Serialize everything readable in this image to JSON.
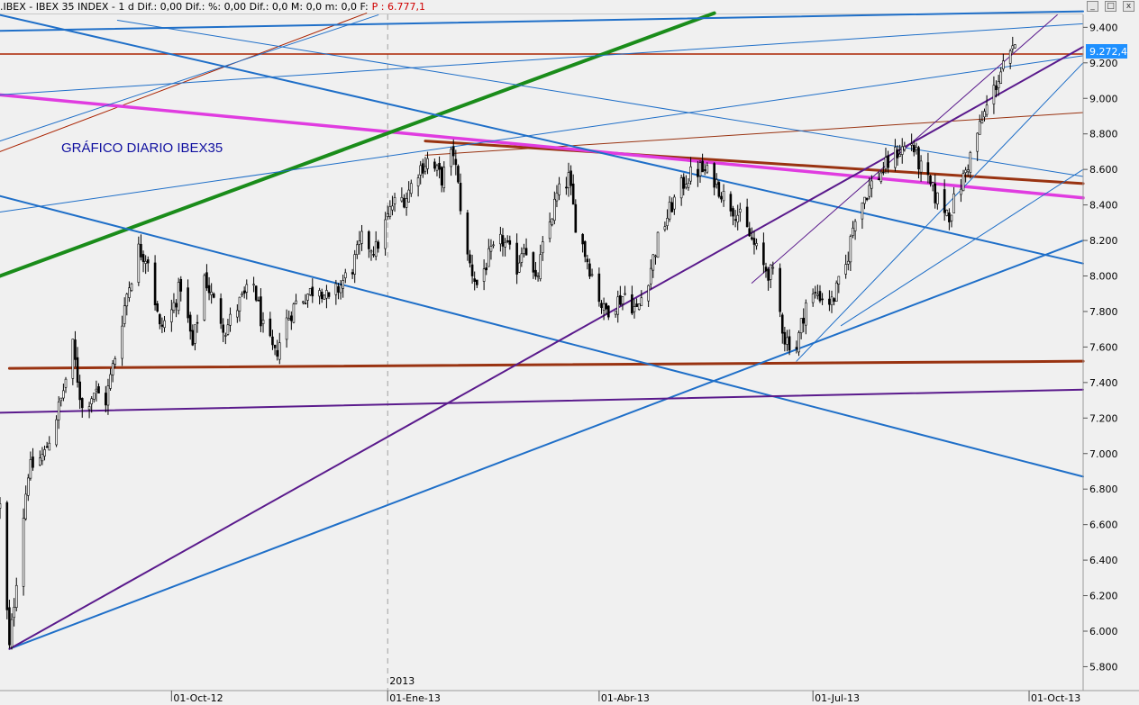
{
  "header": {
    "info": ".IBEX - IBEX 35 INDEX - 1 d Dif.: 0,00 Dif.: %: 0,00 Dif.: 0,0 M: 0,0 m: 0,0 F:",
    "price_label": "P : 6.777,1"
  },
  "window": {
    "minimize_glyph": "_",
    "restore_glyph": "□",
    "close_glyph": "x"
  },
  "chart_data": {
    "type": "candlestick",
    "annotation": "GRÁFICO DIARIO IBEX35",
    "year_marker": "2013",
    "last_price_label": "9.272,4",
    "last_price": 9272.4,
    "ylim": [
      5700,
      9500
    ],
    "yticks": [
      "5.800",
      "6.000",
      "6.200",
      "6.400",
      "6.600",
      "6.800",
      "7.000",
      "7.200",
      "7.400",
      "7.600",
      "7.800",
      "8.000",
      "8.200",
      "8.400",
      "8.600",
      "8.800",
      "9.000",
      "9.200",
      "9.400"
    ],
    "ytick_values": [
      5800,
      6000,
      6200,
      6400,
      6600,
      6800,
      7000,
      7200,
      7400,
      7600,
      7800,
      8000,
      8200,
      8400,
      8600,
      8800,
      9000,
      9200,
      9400
    ],
    "xlim": [
      "2012-07-20",
      "2013-10-24"
    ],
    "xticks": [
      {
        "date": "2012-10-01",
        "label": "01-Oct-12"
      },
      {
        "date": "2013-01-01",
        "label": "01-Ene-13"
      },
      {
        "date": "2013-04-01",
        "label": "01-Abr-13"
      },
      {
        "date": "2013-07-01",
        "label": "01-Jul-13"
      },
      {
        "date": "2013-10-01",
        "label": "01-Oct-13"
      }
    ],
    "colors": {
      "background": "#f0f0f0",
      "candle": "#000000",
      "red_resistance": "#aa2200",
      "brown_support": "#993311",
      "magenta": "#e03ce0",
      "green": "#1a8c1a",
      "blue": "#1f6fc8",
      "purple": "#5a1a8c",
      "label_blue": "#1010a0",
      "price_tag": "#1e90ff"
    },
    "price_path": [
      [
        "2012-07-20",
        6700
      ],
      [
        "2012-07-24",
        5900
      ],
      [
        "2012-07-27",
        6300
      ],
      [
        "2012-08-01",
        6900
      ],
      [
        "2012-08-08",
        7000
      ],
      [
        "2012-08-15",
        7300
      ],
      [
        "2012-08-20",
        7600
      ],
      [
        "2012-08-24",
        7250
      ],
      [
        "2012-08-29",
        7350
      ],
      [
        "2012-09-03",
        7300
      ],
      [
        "2012-09-07",
        7550
      ],
      [
        "2012-09-12",
        7900
      ],
      [
        "2012-09-17",
        8150
      ],
      [
        "2012-09-21",
        8100
      ],
      [
        "2012-09-26",
        7700
      ],
      [
        "2012-10-01",
        7800
      ],
      [
        "2012-10-05",
        7950
      ],
      [
        "2012-10-10",
        7600
      ],
      [
        "2012-10-15",
        8000
      ],
      [
        "2012-10-19",
        7850
      ],
      [
        "2012-10-24",
        7700
      ],
      [
        "2012-10-30",
        7850
      ],
      [
        "2012-11-05",
        7950
      ],
      [
        "2012-11-09",
        7700
      ],
      [
        "2012-11-14",
        7550
      ],
      [
        "2012-11-19",
        7750
      ],
      [
        "2012-11-23",
        7850
      ],
      [
        "2012-11-28",
        7900
      ],
      [
        "2012-12-03",
        7950
      ],
      [
        "2012-12-07",
        7850
      ],
      [
        "2012-12-12",
        7950
      ],
      [
        "2012-12-17",
        8050
      ],
      [
        "2012-12-21",
        8200
      ],
      [
        "2012-12-27",
        8150
      ],
      [
        "2013-01-03",
        8400
      ],
      [
        "2013-01-09",
        8450
      ],
      [
        "2013-01-14",
        8600
      ],
      [
        "2013-01-18",
        8650
      ],
      [
        "2013-01-24",
        8550
      ],
      [
        "2013-01-29",
        8700
      ],
      [
        "2013-02-04",
        8100
      ],
      [
        "2013-02-08",
        7950
      ],
      [
        "2013-02-13",
        8100
      ],
      [
        "2013-02-19",
        8200
      ],
      [
        "2013-02-25",
        8050
      ],
      [
        "2013-02-28",
        8200
      ],
      [
        "2013-03-05",
        7950
      ],
      [
        "2013-03-08",
        8150
      ],
      [
        "2013-03-14",
        8450
      ],
      [
        "2013-03-19",
        8550
      ],
      [
        "2013-03-22",
        8300
      ],
      [
        "2013-03-28",
        8050
      ],
      [
        "2013-04-03",
        7800
      ],
      [
        "2013-04-08",
        7850
      ],
      [
        "2013-04-12",
        7900
      ],
      [
        "2013-04-17",
        7800
      ],
      [
        "2013-04-22",
        8000
      ],
      [
        "2013-04-26",
        8200
      ],
      [
        "2013-05-02",
        8400
      ],
      [
        "2013-05-08",
        8550
      ],
      [
        "2013-05-14",
        8600
      ],
      [
        "2013-05-20",
        8550
      ],
      [
        "2013-05-24",
        8450
      ],
      [
        "2013-05-30",
        8350
      ],
      [
        "2013-06-05",
        8200
      ],
      [
        "2013-06-10",
        8050
      ],
      [
        "2013-06-14",
        8000
      ],
      [
        "2013-06-19",
        7650
      ],
      [
        "2013-06-24",
        7600
      ],
      [
        "2013-06-28",
        7850
      ],
      [
        "2013-07-03",
        7900
      ],
      [
        "2013-07-09",
        7850
      ],
      [
        "2013-07-15",
        8050
      ],
      [
        "2013-07-19",
        8350
      ],
      [
        "2013-07-25",
        8500
      ],
      [
        "2013-07-31",
        8600
      ],
      [
        "2013-08-06",
        8700
      ],
      [
        "2013-08-12",
        8750
      ],
      [
        "2013-08-16",
        8600
      ],
      [
        "2013-08-22",
        8450
      ],
      [
        "2013-08-28",
        8350
      ],
      [
        "2013-09-03",
        8550
      ],
      [
        "2013-09-09",
        8800
      ],
      [
        "2013-09-13",
        8950
      ],
      [
        "2013-09-19",
        9150
      ],
      [
        "2013-09-25",
        9272
      ]
    ],
    "trendlines": [
      {
        "c": "red_resistance",
        "w": 1.5,
        "a": [
          "2012-07-20",
          9250
        ],
        "b": [
          "2013-10-24",
          9250
        ]
      },
      {
        "c": "brown_support",
        "w": 3,
        "a": [
          "2012-07-24",
          7480
        ],
        "b": [
          "2013-10-24",
          7520
        ]
      },
      {
        "c": "brown_support",
        "w": 3,
        "a": [
          "2013-01-17",
          8760
        ],
        "b": [
          "2013-10-24",
          8520
        ]
      },
      {
        "c": "brown_support",
        "w": 1,
        "a": [
          "2013-01-17",
          8680
        ],
        "b": [
          "2013-10-24",
          8920
        ]
      },
      {
        "c": "red_resistance",
        "w": 1,
        "a": [
          "2012-07-20",
          8700
        ],
        "b": [
          "2012-12-23",
          9480
        ]
      },
      {
        "c": "magenta",
        "w": 3.5,
        "a": [
          "2012-07-20",
          9020
        ],
        "b": [
          "2013-10-24",
          8440
        ]
      },
      {
        "c": "green",
        "w": 4,
        "a": [
          "2012-07-20",
          8000
        ],
        "b": [
          "2013-05-20",
          9480
        ]
      },
      {
        "c": "blue",
        "w": 2,
        "a": [
          "2012-07-20",
          9380
        ],
        "b": [
          "2013-10-24",
          9490
        ]
      },
      {
        "c": "blue",
        "w": 2,
        "a": [
          "2012-07-20",
          8450
        ],
        "b": [
          "2013-10-24",
          6870
        ]
      },
      {
        "c": "blue",
        "w": 2,
        "a": [
          "2012-07-20",
          9470
        ],
        "b": [
          "2013-10-24",
          8070
        ]
      },
      {
        "c": "blue",
        "w": 2,
        "a": [
          "2012-07-24",
          5900
        ],
        "b": [
          "2013-10-24",
          8200
        ]
      },
      {
        "c": "blue",
        "w": 1,
        "a": [
          "2012-07-20",
          9020
        ],
        "b": [
          "2013-10-24",
          9420
        ]
      },
      {
        "c": "blue",
        "w": 1,
        "a": [
          "2012-07-20",
          8360
        ],
        "b": [
          "2013-10-24",
          9240
        ]
      },
      {
        "c": "blue",
        "w": 1,
        "a": [
          "2012-07-20",
          8760
        ],
        "b": [
          "2012-12-28",
          9470
        ]
      },
      {
        "c": "blue",
        "w": 1,
        "a": [
          "2012-09-08",
          9440
        ],
        "b": [
          "2013-10-24",
          8560
        ]
      },
      {
        "c": "blue",
        "w": 1,
        "a": [
          "2013-06-24",
          7520
        ],
        "b": [
          "2013-10-24",
          9200
        ]
      },
      {
        "c": "blue",
        "w": 1,
        "a": [
          "2013-07-13",
          7720
        ],
        "b": [
          "2013-10-24",
          8600
        ]
      },
      {
        "c": "purple",
        "w": 2,
        "a": [
          "2012-07-24",
          5900
        ],
        "b": [
          "2013-10-24",
          9290
        ]
      },
      {
        "c": "purple",
        "w": 2,
        "a": [
          "2012-07-20",
          7230
        ],
        "b": [
          "2013-10-24",
          7360
        ]
      },
      {
        "c": "purple",
        "w": 1,
        "a": [
          "2013-06-05",
          7960
        ],
        "b": [
          "2013-10-13",
          9470
        ]
      }
    ]
  }
}
